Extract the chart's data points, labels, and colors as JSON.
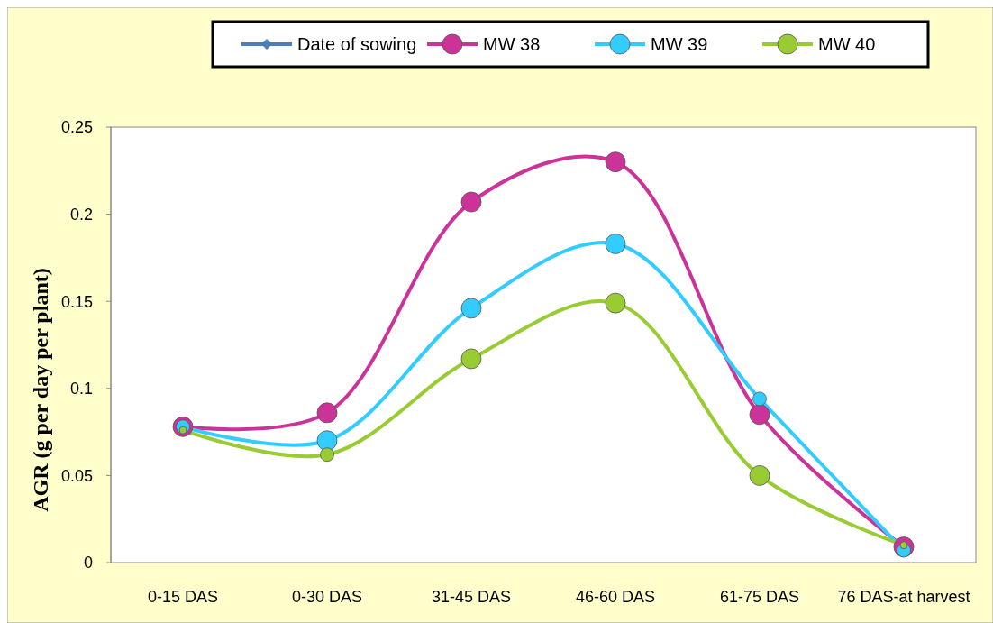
{
  "chart_data": {
    "type": "line",
    "ylabel": "AGR  (g per day per plant)",
    "categories": [
      "0-15 DAS",
      "0-30 DAS",
      "31-45 DAS",
      "46-60 DAS",
      "61-75 DAS",
      "76 DAS-at harvest"
    ],
    "series": [
      {
        "name": "Date of sowing",
        "color": "#4a7ebb",
        "marker": "diamond",
        "values": [
          null,
          null,
          null,
          null,
          null,
          null
        ]
      },
      {
        "name": "MW 38",
        "color": "#cc3399",
        "values": [
          0.078,
          0.086,
          0.207,
          0.23,
          0.085,
          0.009
        ]
      },
      {
        "name": "MW 39",
        "color": "#33ccff",
        "values": [
          0.078,
          0.07,
          0.146,
          0.183,
          0.094,
          0.007
        ]
      },
      {
        "name": "MW 40",
        "color": "#99cc33",
        "values": [
          0.076,
          0.062,
          0.117,
          0.149,
          0.05,
          0.01
        ]
      }
    ],
    "ylim": [
      0,
      0.25
    ],
    "yticks": [
      0,
      0.05,
      0.1,
      0.15,
      0.2,
      0.25
    ],
    "grid": false,
    "legend": "top",
    "marker": "circle",
    "line_style": "solid"
  }
}
